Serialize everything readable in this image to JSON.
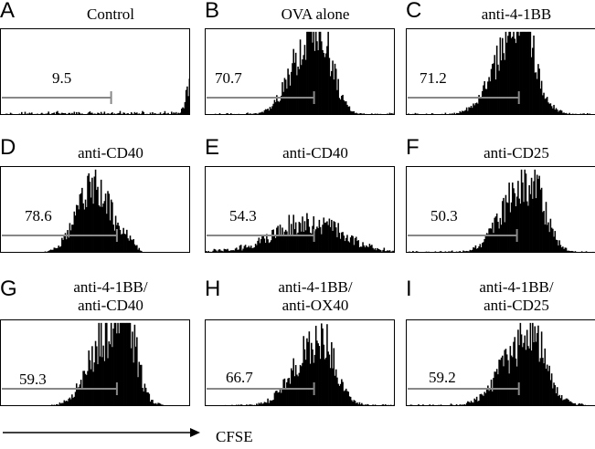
{
  "chart_data": [
    {
      "type": "histogram",
      "panel": "A",
      "title": "Control",
      "gate_value": "9.5",
      "x_axis_label": "CFSE",
      "histogram": {
        "peaks": [
          {
            "center": 0.985,
            "width": 0.012,
            "height": 0.38
          },
          {
            "center": 0.96,
            "width": 0.01,
            "height": 0.08
          }
        ],
        "baseline": 0.03,
        "noise": 0.5
      },
      "gate": {
        "start": 0.0,
        "end": 0.58
      }
    },
    {
      "type": "histogram",
      "panel": "B",
      "title": "OVA alone",
      "gate_value": "70.7",
      "x_axis_label": "CFSE",
      "histogram": {
        "peaks": [
          {
            "center": 0.53,
            "width": 0.09,
            "height": 0.82
          },
          {
            "center": 0.62,
            "width": 0.06,
            "height": 0.48
          }
        ],
        "baseline": 0.02,
        "noise": 0.38
      },
      "gate": {
        "start": 0.0,
        "end": 0.57
      }
    },
    {
      "type": "histogram",
      "panel": "C",
      "title": "anti-4-1BB",
      "gate_value": "71.2",
      "x_axis_label": "CFSE",
      "histogram": {
        "peaks": [
          {
            "center": 0.55,
            "width": 0.1,
            "height": 0.86
          },
          {
            "center": 0.62,
            "width": 0.05,
            "height": 0.55
          }
        ],
        "baseline": 0.02,
        "noise": 0.38
      },
      "gate": {
        "start": 0.0,
        "end": 0.59
      }
    },
    {
      "type": "histogram",
      "panel": "D",
      "title": "anti-CD40",
      "gate_value": "78.6",
      "x_axis_label": "CFSE",
      "histogram": {
        "peaks": [
          {
            "center": 0.49,
            "width": 0.09,
            "height": 0.82
          },
          {
            "center": 0.67,
            "width": 0.03,
            "height": 0.12
          }
        ],
        "baseline": 0.01,
        "noise": 0.38
      },
      "gate": {
        "start": 0.0,
        "end": 0.61
      }
    },
    {
      "type": "histogram",
      "panel": "E",
      "title": "anti-CD40",
      "gate_value": "54.3",
      "x_axis_label": "CFSE",
      "histogram": {
        "peaks": [
          {
            "center": 0.54,
            "width": 0.17,
            "height": 0.38
          }
        ],
        "baseline": 0.03,
        "noise": 0.45
      },
      "gate": {
        "start": 0.0,
        "end": 0.57
      }
    },
    {
      "type": "histogram",
      "panel": "F",
      "title": "anti-CD25",
      "gate_value": "50.3",
      "x_axis_label": "CFSE",
      "histogram": {
        "peaks": [
          {
            "center": 0.59,
            "width": 0.1,
            "height": 0.74
          },
          {
            "center": 0.69,
            "width": 0.05,
            "height": 0.3
          }
        ],
        "baseline": 0.02,
        "noise": 0.4
      },
      "gate": {
        "start": 0.0,
        "end": 0.58
      }
    },
    {
      "type": "histogram",
      "panel": "G",
      "title": "anti-4-1BB/\nanti-CD40",
      "gate_value": "59.3",
      "x_axis_label": "CFSE",
      "histogram": {
        "peaks": [
          {
            "center": 0.56,
            "width": 0.1,
            "height": 0.86
          },
          {
            "center": 0.66,
            "width": 0.05,
            "height": 0.7
          }
        ],
        "baseline": 0.01,
        "noise": 0.42
      },
      "gate": {
        "start": 0.0,
        "end": 0.61
      }
    },
    {
      "type": "histogram",
      "panel": "H",
      "title": "anti-4-1BB/\nanti-OX40",
      "gate_value": "66.7",
      "x_axis_label": "CFSE",
      "histogram": {
        "peaks": [
          {
            "center": 0.55,
            "width": 0.1,
            "height": 0.68
          },
          {
            "center": 0.64,
            "width": 0.05,
            "height": 0.35
          }
        ],
        "baseline": 0.02,
        "noise": 0.4
      },
      "gate": {
        "start": 0.0,
        "end": 0.57
      }
    },
    {
      "type": "histogram",
      "panel": "I",
      "title": "anti-4-1BB/\nanti-CD25",
      "gate_value": "59.2",
      "x_axis_label": "CFSE",
      "histogram": {
        "peaks": [
          {
            "center": 0.6,
            "width": 0.11,
            "height": 0.72
          },
          {
            "center": 0.68,
            "width": 0.05,
            "height": 0.3
          }
        ],
        "baseline": 0.02,
        "noise": 0.4
      },
      "gate": {
        "start": 0.0,
        "end": 0.59
      }
    }
  ],
  "axis": {
    "x_label": "CFSE"
  }
}
